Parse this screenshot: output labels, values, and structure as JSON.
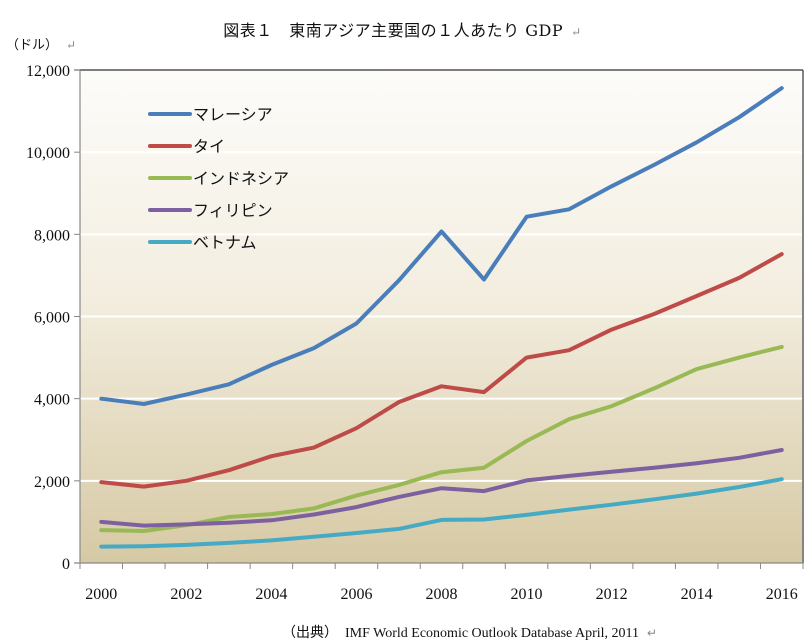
{
  "chart_data": {
    "type": "line",
    "title": "図表１　東南アジア主要国の１人あたり GDP",
    "ylabel": "（ドル）",
    "xlabel": "",
    "source": "（出典）　IMF World Economic Outlook Database April, 2011",
    "ylim": [
      0,
      12000
    ],
    "yticks": [
      0,
      2000,
      4000,
      6000,
      8000,
      10000,
      12000
    ],
    "ytick_labels": [
      "0",
      "2,000",
      "4,000",
      "6,000",
      "8,000",
      "10,000",
      "12,000"
    ],
    "x": [
      2000,
      2001,
      2002,
      2003,
      2004,
      2005,
      2006,
      2007,
      2008,
      2009,
      2010,
      2011,
      2012,
      2013,
      2014,
      2015,
      2016
    ],
    "xtick_labels": [
      "2000",
      "2002",
      "2004",
      "2006",
      "2008",
      "2010",
      "2012",
      "2014",
      "2016"
    ],
    "grid": true,
    "legend_position": "top-left",
    "series": [
      {
        "name": "マレーシア",
        "color": "#4a7ebb",
        "values": [
          4000,
          3870,
          4100,
          4350,
          4820,
          5230,
          5830,
          6880,
          8070,
          6900,
          8430,
          8610,
          9170,
          9690,
          10240,
          10850,
          11560
        ]
      },
      {
        "name": "タイ",
        "color": "#be4b48",
        "values": [
          1970,
          1860,
          2000,
          2260,
          2600,
          2810,
          3280,
          3920,
          4300,
          4160,
          5000,
          5180,
          5680,
          6060,
          6500,
          6940,
          7520
        ]
      },
      {
        "name": "インドネシア",
        "color": "#98b954",
        "values": [
          800,
          780,
          920,
          1120,
          1190,
          1330,
          1640,
          1900,
          2210,
          2320,
          2970,
          3500,
          3820,
          4250,
          4720,
          5000,
          5260
        ]
      },
      {
        "name": "フィリピン",
        "color": "#7d60a0",
        "values": [
          1000,
          910,
          940,
          980,
          1040,
          1180,
          1360,
          1610,
          1820,
          1750,
          2010,
          2120,
          2220,
          2320,
          2430,
          2560,
          2750
        ]
      },
      {
        "name": "ベトナム",
        "color": "#46aac5",
        "values": [
          400,
          410,
          440,
          490,
          550,
          640,
          730,
          830,
          1050,
          1060,
          1170,
          1300,
          1420,
          1550,
          1690,
          1850,
          2040
        ]
      }
    ]
  }
}
